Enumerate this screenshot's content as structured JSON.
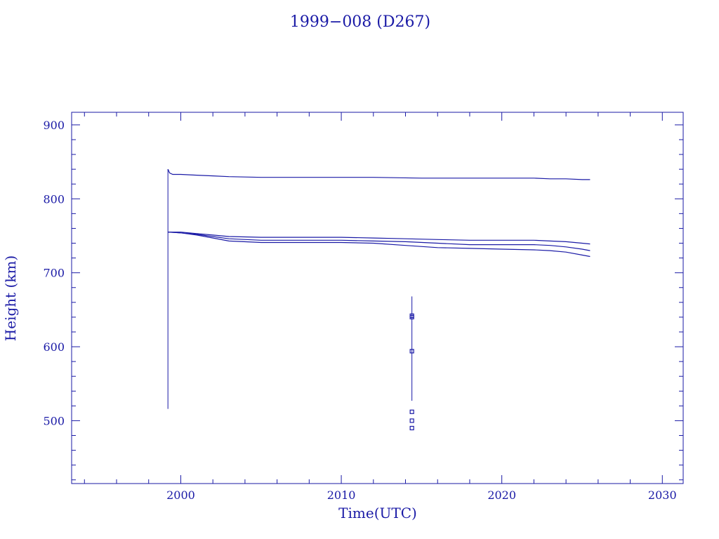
{
  "chart_data": {
    "type": "line",
    "title": "1999−008 (D267)",
    "xlabel": "Time(UTC)",
    "ylabel": "Height (km)",
    "xlim": [
      1993.2,
      2031.3
    ],
    "ylim": [
      415,
      917
    ],
    "x_ticks": [
      2000,
      2010,
      2020,
      2030
    ],
    "x_tick_labels": [
      "2000",
      "2010",
      "2020",
      "2030"
    ],
    "y_ticks": [
      500,
      600,
      700,
      800,
      900
    ],
    "y_tick_labels": [
      "500",
      "600",
      "700",
      "800",
      "900"
    ],
    "grid": false,
    "color": "#1a1aa6",
    "series": [
      {
        "x": [
          1999.2,
          1999.3,
          1999.5,
          2000,
          2001,
          2002,
          2003,
          2005,
          2008,
          2010,
          2012,
          2015,
          2018,
          2020,
          2022,
          2023,
          2024,
          2025,
          2025.5
        ],
        "y": [
          840,
          835,
          833,
          833,
          832,
          831,
          830,
          829,
          829,
          829,
          829,
          828,
          828,
          828,
          828,
          827,
          827,
          826,
          826
        ]
      },
      {
        "x": [
          1999.2,
          2000,
          2001,
          2002,
          2003,
          2005,
          2008,
          2010,
          2012,
          2014,
          2016,
          2018,
          2020,
          2022,
          2023,
          2024,
          2025,
          2025.5
        ],
        "y": [
          755,
          755,
          753,
          751,
          749,
          748,
          748,
          748,
          747,
          746,
          745,
          744,
          744,
          744,
          743,
          742,
          740,
          739
        ]
      },
      {
        "x": [
          1999.2,
          2000,
          2001,
          2002,
          2003,
          2005,
          2008,
          2010,
          2012,
          2014,
          2016,
          2018,
          2020,
          2022,
          2023,
          2024,
          2025,
          2025.5
        ],
        "y": [
          755,
          754,
          752,
          749,
          746,
          744,
          744,
          744,
          743,
          742,
          740,
          738,
          738,
          738,
          737,
          735,
          732,
          730
        ]
      },
      {
        "x": [
          1999.2,
          2000,
          2001,
          2002,
          2003,
          2005,
          2008,
          2010,
          2012,
          2014,
          2016,
          2018,
          2020,
          2022,
          2023,
          2024,
          2025,
          2025.5
        ],
        "y": [
          755,
          754,
          751,
          747,
          743,
          741,
          741,
          741,
          740,
          737,
          734,
          733,
          732,
          731,
          730,
          728,
          724,
          722
        ]
      }
    ],
    "vertical_lines": [
      {
        "x": 1999.2,
        "y_from": 516,
        "y_to": 840
      },
      {
        "x": 2014.4,
        "y_from": 527,
        "y_to": 668
      }
    ],
    "markers": [
      {
        "x": 2014.4,
        "y": 642
      },
      {
        "x": 2014.4,
        "y": 640
      },
      {
        "x": 2014.4,
        "y": 594
      },
      {
        "x": 2014.4,
        "y": 512
      },
      {
        "x": 2014.4,
        "y": 500
      },
      {
        "x": 2014.4,
        "y": 490
      }
    ]
  }
}
